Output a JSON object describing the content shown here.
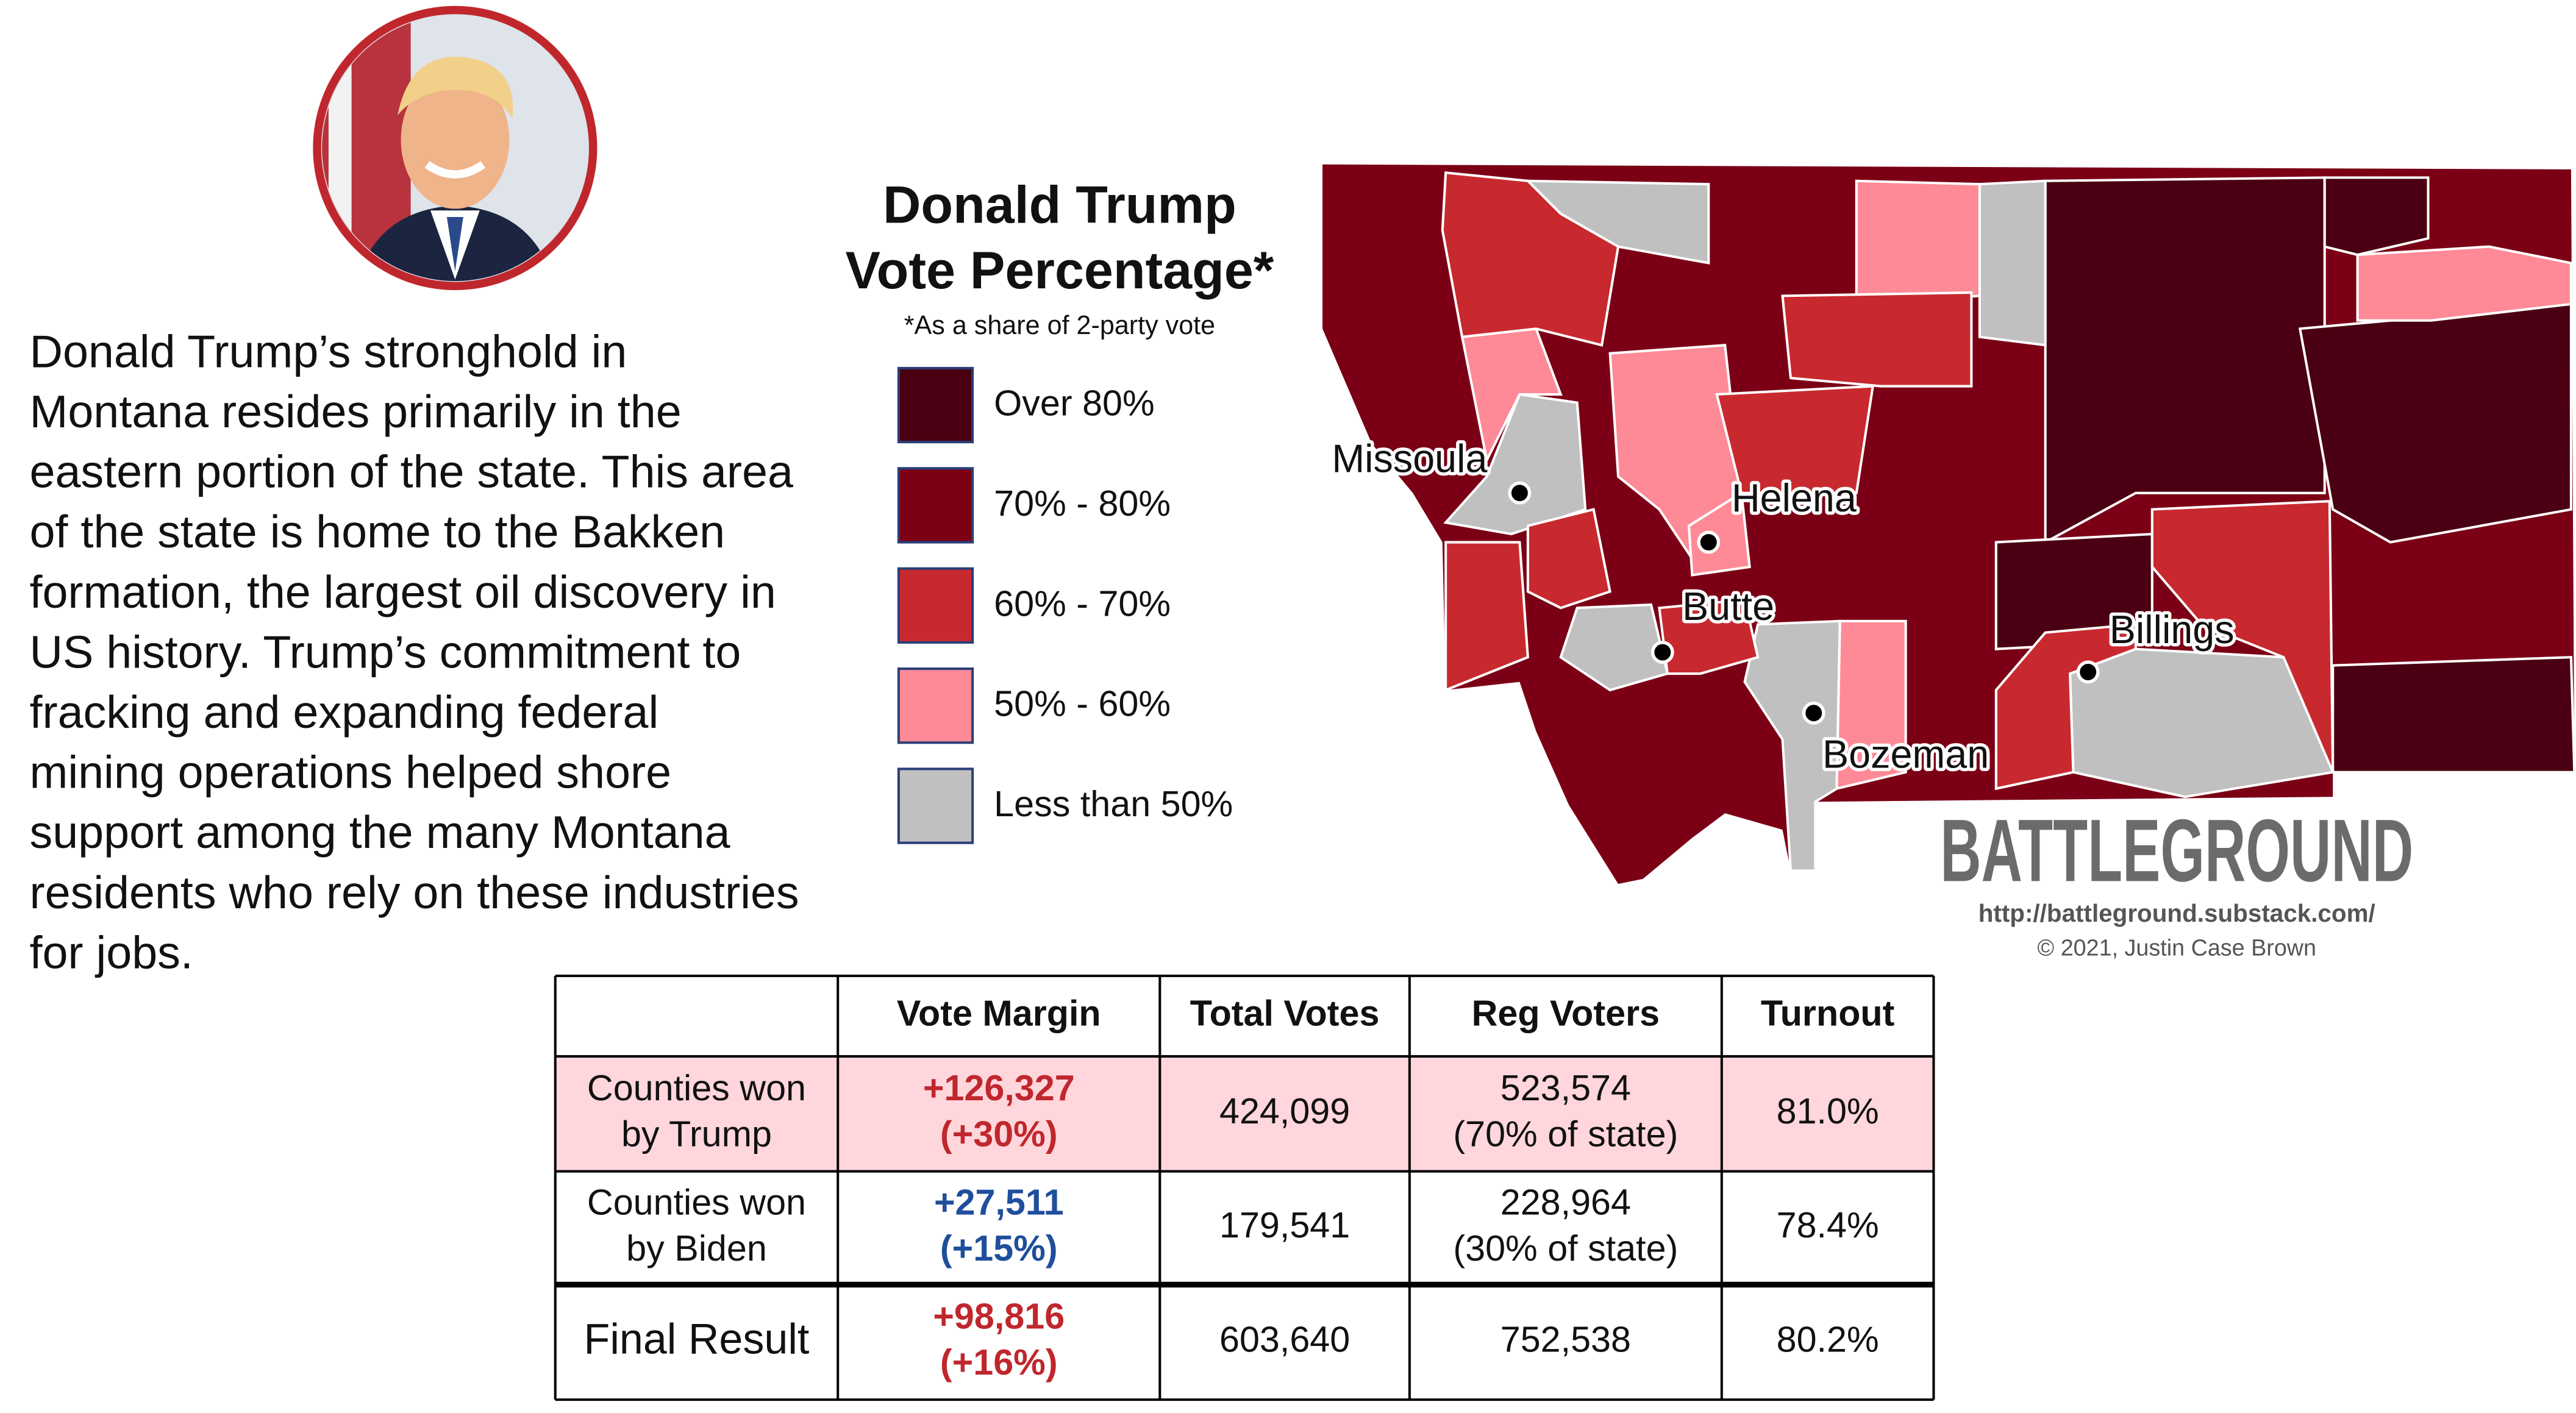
{
  "photo_alt": null,
  "description_lines": [
    "Donald Trump’s stronghold in",
    "Montana resides primarily in the",
    "eastern portion of the state. This area",
    "of the state is home to the Bakken",
    "formation, the largest oil discovery in",
    "US history. Trump’s commitment to",
    "fracking and expanding federal",
    "mining operations helped shore",
    "support among the many Montana",
    "residents who rely on these industries",
    "for jobs."
  ],
  "map": {
    "title_lines": [
      "Donald Trump",
      "Vote Percentage*"
    ],
    "subtitle": "*As a share of 2-party vote",
    "legend": [
      {
        "label": "Over 80%",
        "color": "#4a0012"
      },
      {
        "label": "70% - 80%",
        "color": "#7b0016"
      },
      {
        "label": "60% - 70%",
        "color": "#c8292f"
      },
      {
        "label": "50% - 60%",
        "color": "#ff8a97"
      },
      {
        "label": "Less than 50%",
        "color": "#c0c0c0"
      }
    ],
    "cities": [
      "Missoula",
      "Helena",
      "Butte",
      "Bozeman",
      "Billings"
    ]
  },
  "brand": {
    "name": "BATTLEGROUND",
    "url": "http://battleground.substack.com/",
    "credit": "© 2021, Justin Case Brown"
  },
  "table": {
    "header": [
      "Vote Margin",
      "Total Votes",
      "Reg Voters",
      "Turnout"
    ],
    "rows": [
      {
        "label": [
          "Counties won",
          "by Trump"
        ],
        "margin_color": "#c0272d",
        "highlight": "#ffd6dc",
        "cells": [
          [
            "+126,327",
            "(+30%)"
          ],
          [
            "424,099"
          ],
          [
            "523,574",
            "(70% of state)"
          ],
          [
            "81.0%"
          ]
        ]
      },
      {
        "label": [
          "Counties won",
          "by Biden"
        ],
        "margin_color": "#1f4e9c",
        "cells": [
          [
            "+27,511",
            "(+15%)"
          ],
          [
            "179,541"
          ],
          [
            "228,964",
            "(30% of state)"
          ],
          [
            "78.4%"
          ]
        ]
      },
      {
        "label": [
          "Final Result"
        ],
        "margin_color": "#c0272d",
        "cells": [
          [
            "+98,816",
            "(+16%)"
          ],
          [
            "603,640"
          ],
          [
            "752,538"
          ],
          [
            "80.2%"
          ]
        ]
      }
    ]
  }
}
